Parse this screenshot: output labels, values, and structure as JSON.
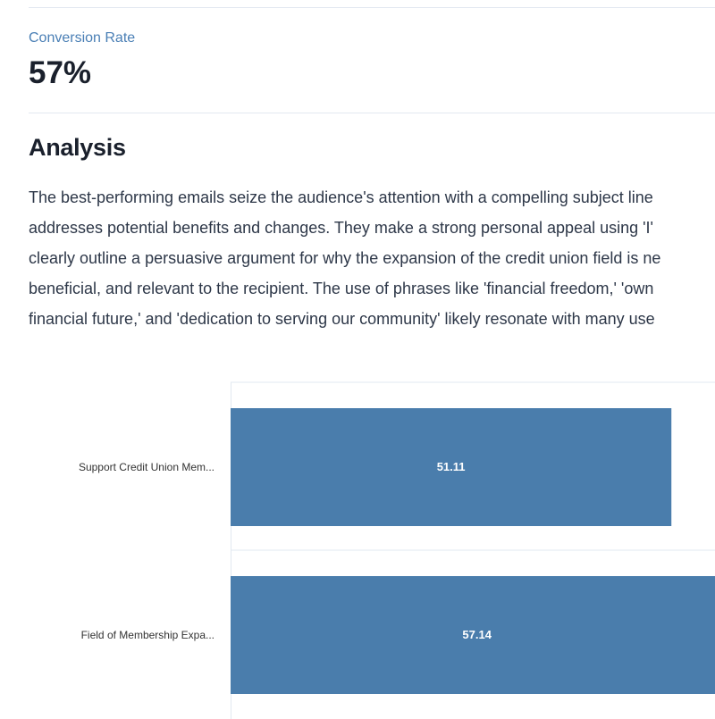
{
  "metric": {
    "label": "Conversion Rate",
    "value": "57%"
  },
  "analysis": {
    "title": "Analysis",
    "lines": [
      "The best-performing emails seize the audience's attention with a compelling subject line",
      "addresses potential benefits and changes. They make a strong personal appeal using 'I'",
      "clearly outline a persuasive argument for why the expansion of the credit union field is ne",
      "beneficial, and relevant to the recipient. The use of phrases like 'financial freedom,' 'own",
      "financial future,' and 'dedication to serving our community' likely resonate with many use"
    ]
  },
  "colors": {
    "bar": "#4a7dac",
    "grid": "#e2e8f0",
    "accent_label": "#4a7fb5"
  },
  "chart_data": {
    "type": "bar",
    "orientation": "horizontal",
    "categories": [
      "Support Credit Union Mem...",
      "Field of Membership Expa..."
    ],
    "values": [
      51.11,
      57.14
    ],
    "value_labels": [
      "51.11",
      "57.14"
    ],
    "xlim": [
      0,
      80
    ],
    "title": "",
    "xlabel": "",
    "ylabel": "",
    "grid": true
  }
}
